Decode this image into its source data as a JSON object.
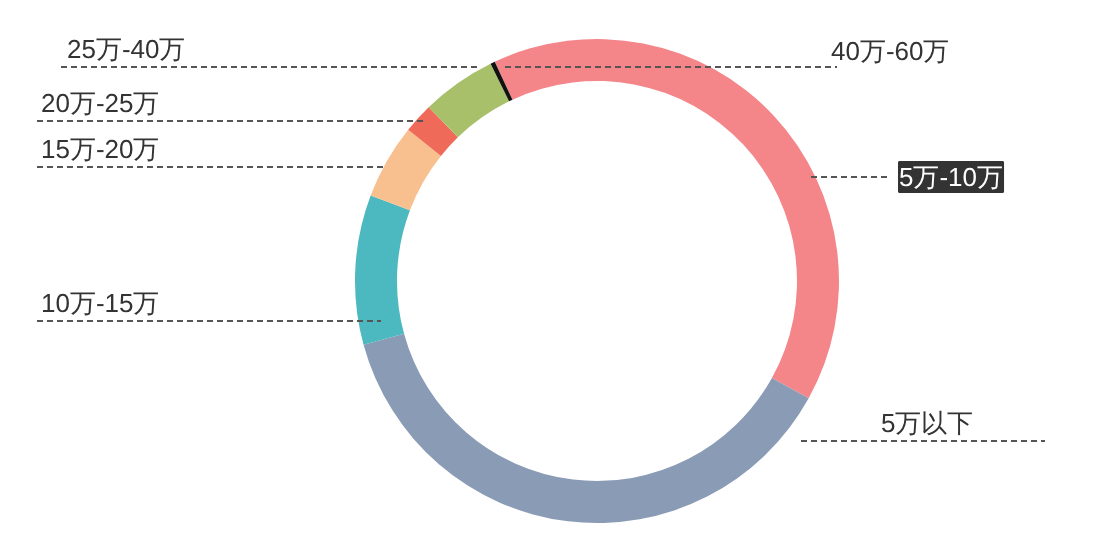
{
  "chart_data": {
    "type": "donut",
    "categories": [
      "5万-10万",
      "5万以下",
      "10万-15万",
      "15万-20万",
      "20万-25万",
      "25万-40万",
      "40万-60万"
    ],
    "values": [
      40,
      37.7,
      10,
      5,
      2,
      5,
      0.3
    ],
    "colors": [
      "#f4868a",
      "#8a9bb5",
      "#4cb8bf",
      "#f9c08f",
      "#f06a5a",
      "#a8c06a",
      "#111111"
    ]
  }
}
